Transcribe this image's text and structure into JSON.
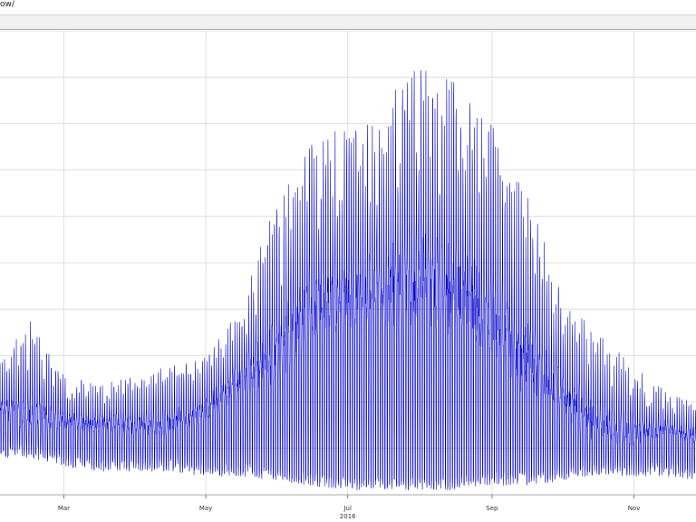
{
  "header": {
    "title_fragment": "ow/"
  },
  "chart_data": {
    "type": "line",
    "title": "",
    "xlabel": "",
    "ylabel": "",
    "year_label": "2016",
    "x_range": [
      "2016-02-01",
      "2016-11-30"
    ],
    "y_range_note": "axis ticks not visible",
    "grid": true,
    "x_ticks": [
      {
        "label": "Mar",
        "date": "2016-03-01"
      },
      {
        "label": "May",
        "date": "2016-05-01"
      },
      {
        "label": "Jul",
        "date": "2016-07-01"
      },
      {
        "label": "Sep",
        "date": "2016-09-01"
      },
      {
        "label": "Nov",
        "date": "2016-11-01"
      }
    ],
    "series": [
      {
        "color": "#0000cc",
        "envelope": [
          {
            "date": "2016-02-01",
            "low": 0.08,
            "mid": 0.19,
            "high": 0.28
          },
          {
            "date": "2016-02-15",
            "low": 0.08,
            "mid": 0.17,
            "high": 0.38
          },
          {
            "date": "2016-03-01",
            "low": 0.06,
            "mid": 0.16,
            "high": 0.26
          },
          {
            "date": "2016-03-15",
            "low": 0.05,
            "mid": 0.15,
            "high": 0.24
          },
          {
            "date": "2016-04-01",
            "low": 0.05,
            "mid": 0.15,
            "high": 0.26
          },
          {
            "date": "2016-04-15",
            "low": 0.05,
            "mid": 0.15,
            "high": 0.28
          },
          {
            "date": "2016-05-01",
            "low": 0.04,
            "mid": 0.18,
            "high": 0.3
          },
          {
            "date": "2016-05-15",
            "low": 0.04,
            "mid": 0.24,
            "high": 0.4
          },
          {
            "date": "2016-06-01",
            "low": 0.03,
            "mid": 0.3,
            "high": 0.64
          },
          {
            "date": "2016-06-15",
            "low": 0.02,
            "mid": 0.4,
            "high": 0.76
          },
          {
            "date": "2016-07-01",
            "low": 0.01,
            "mid": 0.42,
            "high": 0.8
          },
          {
            "date": "2016-07-15",
            "low": 0.01,
            "mid": 0.43,
            "high": 0.84
          },
          {
            "date": "2016-08-01",
            "low": 0.01,
            "mid": 0.45,
            "high": 0.93
          },
          {
            "date": "2016-08-15",
            "low": 0.01,
            "mid": 0.42,
            "high": 0.9
          },
          {
            "date": "2016-09-01",
            "low": 0.02,
            "mid": 0.37,
            "high": 0.8
          },
          {
            "date": "2016-09-15",
            "low": 0.02,
            "mid": 0.28,
            "high": 0.67
          },
          {
            "date": "2016-10-01",
            "low": 0.03,
            "mid": 0.21,
            "high": 0.44
          },
          {
            "date": "2016-10-15",
            "low": 0.04,
            "mid": 0.15,
            "high": 0.36
          },
          {
            "date": "2016-11-01",
            "low": 0.04,
            "mid": 0.13,
            "high": 0.28
          },
          {
            "date": "2016-11-15",
            "low": 0.04,
            "mid": 0.14,
            "high": 0.22
          },
          {
            "date": "2016-11-30",
            "low": 0.03,
            "mid": 0.12,
            "high": 0.2
          }
        ]
      }
    ]
  }
}
